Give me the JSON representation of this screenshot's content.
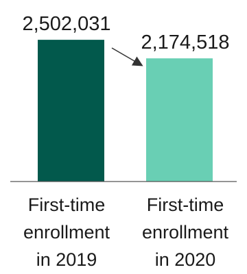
{
  "chart_data": {
    "type": "bar",
    "categories": [
      [
        "First-time",
        "enrollment",
        "in 2019"
      ],
      [
        "First-time",
        "enrollment",
        "in 2020"
      ]
    ],
    "values": [
      2502031,
      2174518
    ],
    "value_labels": [
      "2,502,031",
      "2,174,518"
    ],
    "colors": [
      "#02594c",
      "#69cfb4"
    ],
    "ylim": [
      0,
      2600000
    ],
    "grid": false,
    "legend": "none",
    "annotation": "arrow-from-first-to-second-bar"
  }
}
